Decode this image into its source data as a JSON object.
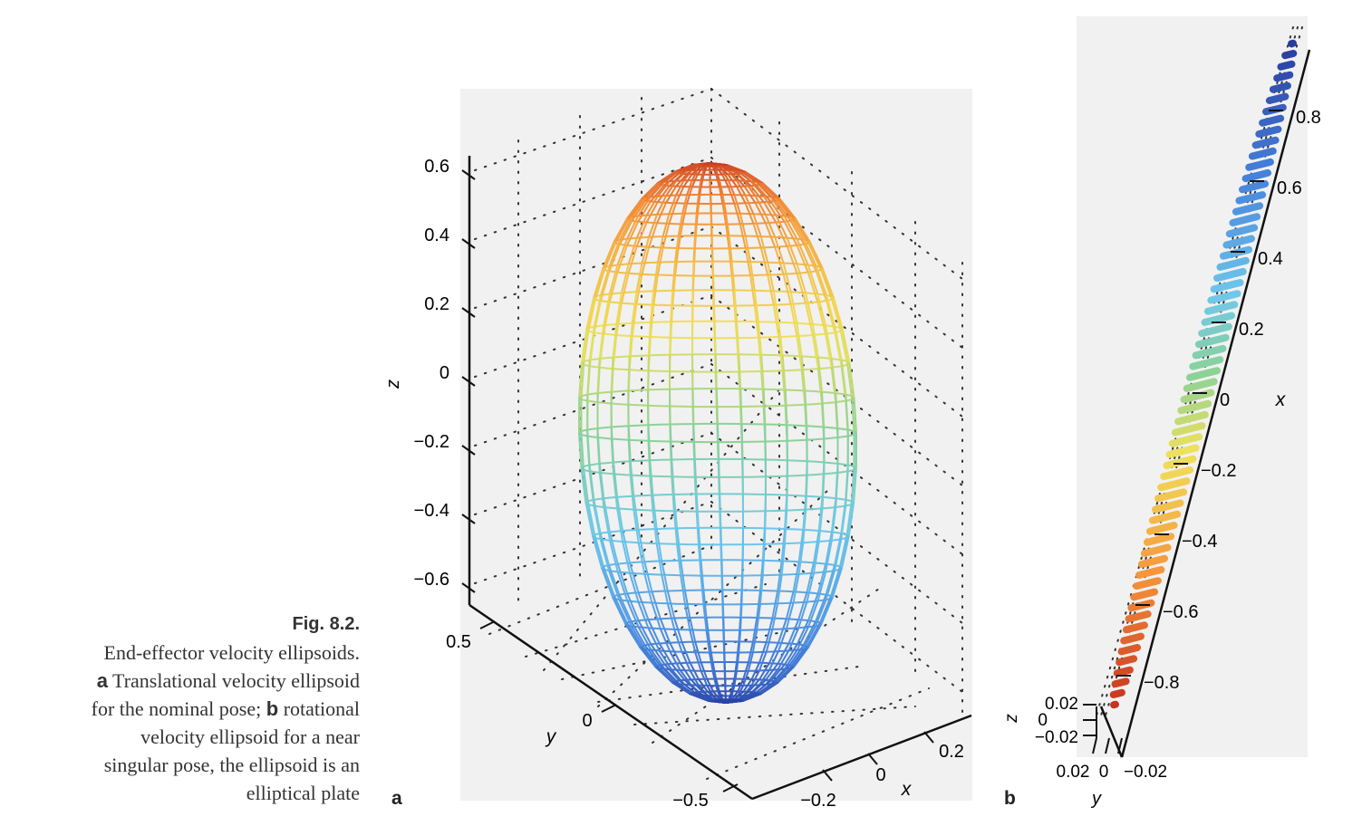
{
  "caption": {
    "fig": "Fig. 8.2.",
    "line1": "End-effector velocity ellipsoids.",
    "a_letter": "a",
    "a_text": " Translational velocity ellipsoid",
    "line3_pre": "for the nominal pose; ",
    "b_letter": "b",
    "b_text": " rotational",
    "line4": "velocity ellipsoid for a near",
    "line5": "singular pose, the ellipsoid is an",
    "line6": "elliptical plate"
  },
  "panel_a": {
    "label": "a",
    "z_ticks": [
      "0.6",
      "0.4",
      "0.2",
      "0",
      "−0.2",
      "−0.4",
      "−0.6"
    ],
    "z_label": "z",
    "y_ticks": [
      "0.5",
      "0",
      "−0.5"
    ],
    "y_label": "y",
    "x_ticks": [
      "−0.2",
      "0",
      "0.2"
    ],
    "x_label": "x"
  },
  "panel_b": {
    "label": "b",
    "x_ticks": [
      "0.8",
      "0.6",
      "0.4",
      "0.2",
      "0",
      "−0.2",
      "−0.4",
      "−0.6",
      "−0.8"
    ],
    "x_label": "x",
    "z_ticks": [
      "0.02",
      "0",
      "−0.02"
    ],
    "z_label": "z",
    "y_ticks": [
      "0.02",
      "0",
      "−0.02"
    ],
    "y_label": "y"
  }
}
